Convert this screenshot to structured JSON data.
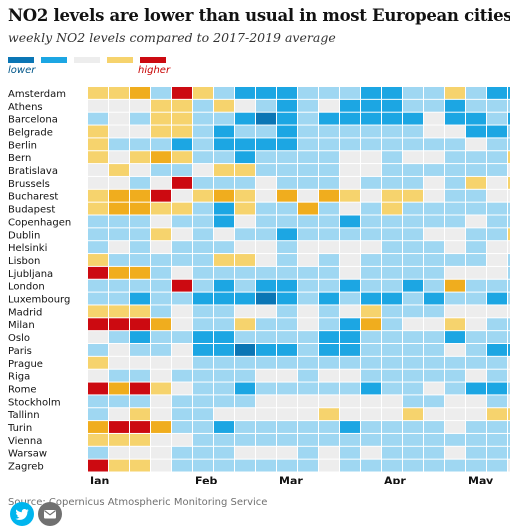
{
  "title": "NO2 levels are lower than usual in most European cities",
  "subtitle": "weekly NO2 levels compared to 2017-2019 average",
  "legend": {
    "low_label": "lower",
    "high_label": "higher",
    "colors": [
      "#0b76b5",
      "#1ca6e3",
      "#9fd7f2",
      "#ededed",
      "#f6d36d",
      "#f0ad1e",
      "#cc0a11"
    ]
  },
  "source": "Source: Copernicus Atmospheric Monitoring Service",
  "share": {
    "twitter": "twitter-icon",
    "email": "email-icon"
  },
  "chart_data": {
    "type": "heatmap",
    "title": "",
    "value_scale": "0 = much lower ... 6 = much higher",
    "x_ticks": [
      "Jan",
      "Feb",
      "Mar",
      "Apr",
      "May"
    ],
    "cities": [
      "Amsterdam",
      "Athens",
      "Barcelona",
      "Belgrade",
      "Berlin",
      "Bern",
      "Bratislava",
      "Brussels",
      "Bucharest",
      "Budapest",
      "Copenhagen",
      "Dublin",
      "Helsinki",
      "Lisbon",
      "Ljubljana",
      "London",
      "Luxembourg",
      "Madrid",
      "Milan",
      "Oslo",
      "Paris",
      "Prague",
      "Riga",
      "Rome",
      "Stockholm",
      "Tallinn",
      "Turin",
      "Vienna",
      "Warsaw",
      "Zagreb"
    ],
    "values": [
      [
        4,
        4,
        5,
        2,
        6,
        4,
        2,
        1,
        1,
        1,
        2,
        2,
        2,
        1,
        1,
        2,
        2,
        4,
        2,
        1,
        1,
        2,
        3
      ],
      [
        3,
        3,
        3,
        4,
        4,
        2,
        4,
        3,
        2,
        1,
        2,
        3,
        1,
        1,
        1,
        2,
        2,
        1,
        2,
        2,
        2,
        3,
        4
      ],
      [
        2,
        3,
        2,
        4,
        4,
        2,
        2,
        1,
        0,
        1,
        2,
        1,
        1,
        1,
        1,
        1,
        3,
        1,
        1,
        2,
        1,
        0,
        1
      ],
      [
        4,
        3,
        3,
        4,
        4,
        2,
        1,
        2,
        2,
        1,
        2,
        2,
        2,
        2,
        2,
        2,
        3,
        3,
        1,
        1,
        2,
        3,
        2
      ],
      [
        4,
        2,
        2,
        2,
        1,
        2,
        1,
        1,
        1,
        1,
        2,
        2,
        2,
        2,
        2,
        2,
        2,
        2,
        3,
        2,
        2,
        2,
        2
      ],
      [
        4,
        3,
        4,
        5,
        4,
        2,
        2,
        1,
        2,
        2,
        2,
        2,
        3,
        3,
        2,
        3,
        3,
        2,
        2,
        2,
        4,
        3,
        2
      ],
      [
        3,
        4,
        3,
        2,
        2,
        3,
        4,
        4,
        2,
        2,
        2,
        2,
        3,
        3,
        2,
        2,
        2,
        2,
        2,
        2,
        3,
        3,
        3
      ],
      [
        3,
        3,
        2,
        3,
        6,
        2,
        2,
        2,
        3,
        2,
        2,
        2,
        3,
        2,
        2,
        2,
        3,
        2,
        4,
        3,
        4,
        2,
        3
      ],
      [
        4,
        5,
        5,
        6,
        3,
        4,
        5,
        4,
        3,
        5,
        3,
        5,
        4,
        3,
        4,
        4,
        3,
        2,
        2,
        3,
        3,
        2,
        3
      ],
      [
        4,
        5,
        5,
        4,
        4,
        2,
        1,
        4,
        2,
        2,
        5,
        2,
        3,
        2,
        4,
        2,
        2,
        2,
        2,
        2,
        2,
        2,
        2
      ],
      [
        2,
        2,
        2,
        3,
        2,
        2,
        1,
        3,
        2,
        2,
        2,
        2,
        1,
        2,
        2,
        2,
        2,
        2,
        3,
        2,
        2,
        3,
        3
      ],
      [
        2,
        2,
        2,
        4,
        3,
        2,
        3,
        2,
        2,
        1,
        2,
        2,
        2,
        2,
        2,
        2,
        3,
        3,
        2,
        2,
        4,
        2,
        2
      ],
      [
        2,
        3,
        2,
        3,
        2,
        2,
        2,
        3,
        3,
        2,
        3,
        3,
        3,
        3,
        2,
        2,
        2,
        3,
        2,
        3,
        3,
        2,
        2
      ],
      [
        4,
        2,
        2,
        2,
        2,
        2,
        4,
        4,
        3,
        2,
        3,
        2,
        3,
        2,
        2,
        2,
        2,
        2,
        2,
        3,
        2,
        2,
        3
      ],
      [
        6,
        5,
        5,
        2,
        3,
        2,
        2,
        2,
        2,
        2,
        2,
        2,
        3,
        2,
        2,
        2,
        2,
        3,
        3,
        3,
        2,
        2,
        3
      ],
      [
        2,
        2,
        2,
        2,
        6,
        2,
        1,
        2,
        1,
        1,
        2,
        2,
        1,
        2,
        2,
        1,
        2,
        5,
        2,
        2,
        2,
        2,
        2
      ],
      [
        2,
        2,
        1,
        2,
        2,
        1,
        1,
        1,
        0,
        1,
        2,
        1,
        2,
        1,
        1,
        2,
        1,
        2,
        2,
        1,
        2,
        2,
        2
      ],
      [
        4,
        4,
        4,
        2,
        3,
        2,
        2,
        3,
        3,
        2,
        3,
        2,
        3,
        4,
        2,
        2,
        2,
        3,
        3,
        3,
        3,
        2,
        2
      ],
      [
        6,
        6,
        6,
        5,
        3,
        2,
        2,
        4,
        2,
        2,
        3,
        2,
        1,
        5,
        2,
        3,
        3,
        4,
        3,
        2,
        2,
        2,
        2
      ],
      [
        3,
        2,
        1,
        2,
        2,
        1,
        1,
        2,
        2,
        2,
        2,
        1,
        1,
        2,
        2,
        2,
        2,
        1,
        2,
        2,
        2,
        1,
        2
      ],
      [
        2,
        3,
        2,
        2,
        3,
        1,
        1,
        0,
        1,
        1,
        2,
        1,
        1,
        2,
        2,
        2,
        2,
        3,
        2,
        1,
        1,
        1,
        2
      ],
      [
        4,
        3,
        3,
        3,
        3,
        2,
        2,
        2,
        2,
        2,
        2,
        2,
        2,
        2,
        2,
        2,
        2,
        2,
        2,
        2,
        3,
        2,
        2
      ],
      [
        3,
        2,
        2,
        3,
        2,
        2,
        2,
        2,
        3,
        3,
        2,
        3,
        3,
        2,
        2,
        2,
        2,
        2,
        3,
        2,
        3,
        2,
        2
      ],
      [
        6,
        5,
        6,
        4,
        3,
        2,
        2,
        1,
        2,
        2,
        2,
        2,
        2,
        1,
        2,
        2,
        3,
        2,
        1,
        1,
        2,
        2,
        2
      ],
      [
        2,
        2,
        2,
        3,
        2,
        2,
        2,
        2,
        3,
        3,
        3,
        3,
        3,
        3,
        3,
        2,
        2,
        3,
        3,
        2,
        3,
        3,
        3
      ],
      [
        2,
        3,
        4,
        3,
        2,
        2,
        3,
        3,
        3,
        3,
        3,
        4,
        3,
        3,
        3,
        4,
        3,
        3,
        3,
        4,
        4,
        3,
        4
      ],
      [
        5,
        6,
        6,
        5,
        2,
        2,
        1,
        2,
        2,
        2,
        2,
        2,
        1,
        2,
        2,
        2,
        2,
        3,
        2,
        2,
        2,
        2,
        2
      ],
      [
        4,
        4,
        4,
        3,
        3,
        2,
        2,
        2,
        2,
        2,
        2,
        2,
        2,
        2,
        2,
        2,
        2,
        2,
        2,
        2,
        2,
        2,
        2
      ],
      [
        2,
        3,
        3,
        3,
        2,
        2,
        2,
        3,
        3,
        3,
        2,
        3,
        2,
        3,
        2,
        2,
        2,
        3,
        2,
        2,
        2,
        3,
        3
      ],
      [
        6,
        4,
        4,
        3,
        2,
        2,
        2,
        2,
        2,
        2,
        2,
        3,
        2,
        2,
        2,
        2,
        2,
        2,
        2,
        2,
        3,
        2,
        2
      ]
    ]
  }
}
